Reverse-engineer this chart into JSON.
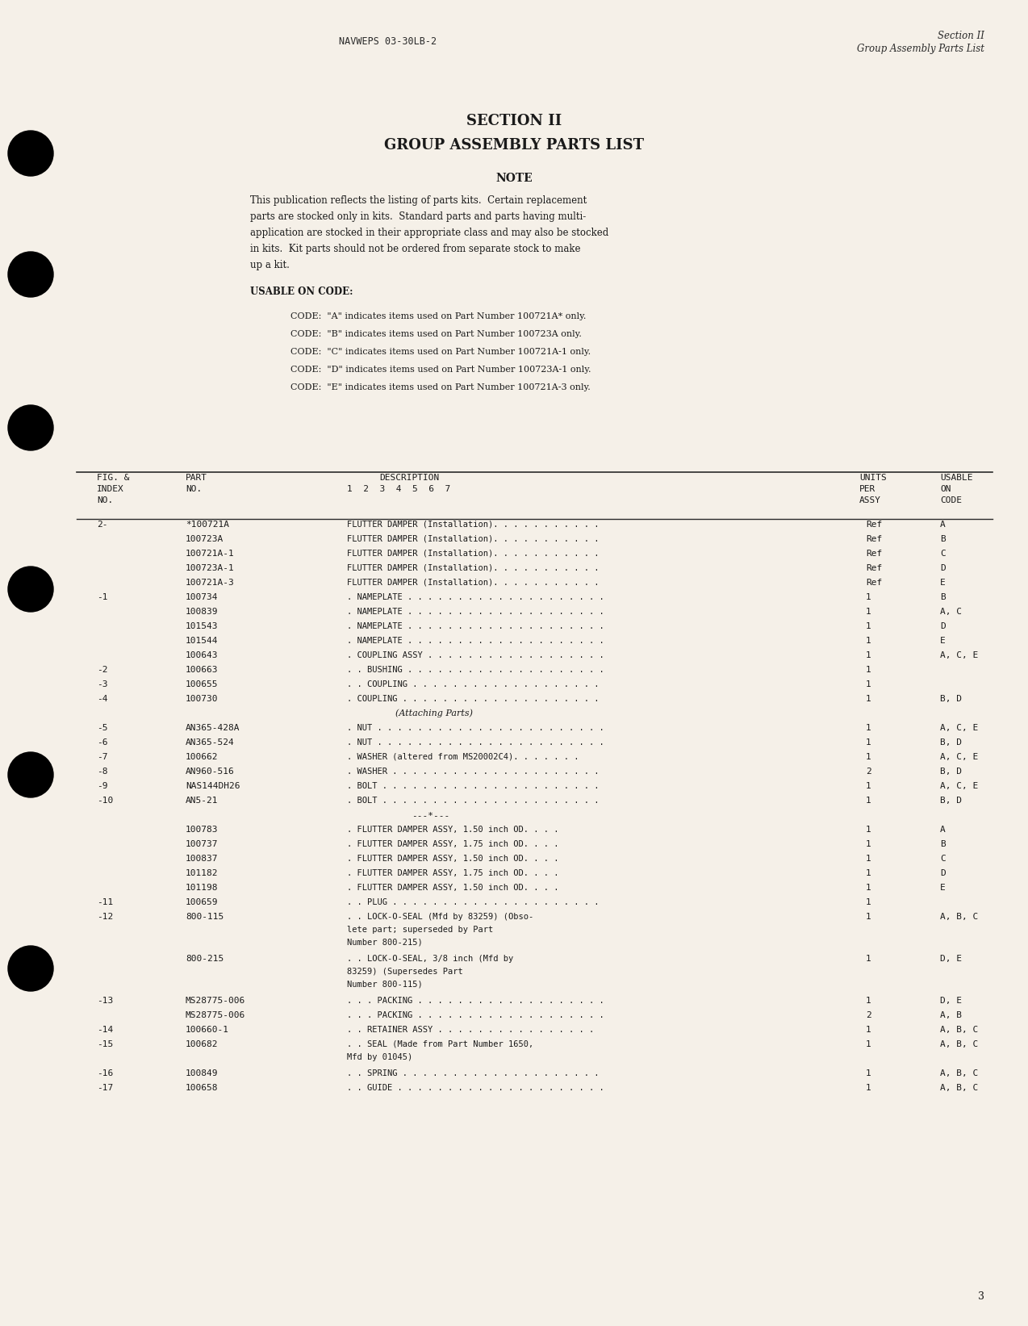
{
  "bg_color": "#f5f0e8",
  "header_left": "NAVWEPS 03-30LB-2",
  "header_right_line1": "Section II",
  "header_right_line2": "Group Assembly Parts List",
  "section_title_line1": "SECTION II",
  "section_title_line2": "GROUP ASSEMBLY PARTS LIST",
  "note_title": "NOTE",
  "note_body": "This publication reflects the listing of parts kits.  Certain replacement\nparts are stocked only in kits.  Standard parts and parts having multi-\napplication are stocked in their appropriate class and may also be stocked\nin kits.  Kit parts should not be ordered from separate stock to make\nup a kit.",
  "usable_on_title": "USABLE ON CODE:",
  "usable_on_codes": [
    "CODE:  \"A\" indicates items used on Part Number 100721A* only.",
    "CODE:  \"B\" indicates items used on Part Number 100723A only.",
    "CODE:  \"C\" indicates items used on Part Number 100721A-1 only.",
    "CODE:  \"D\" indicates items used on Part Number 100723A-1 only.",
    "CODE:  \"E\" indicates items used on Part Number 100721A-3 only."
  ],
  "col_headers": [
    "FIG. &\nINDEX\nNO.",
    "PART\nNO.",
    "DESCRIPTION\n1  2  3  4  5  6  7",
    "UNITS\nPER\nASSY",
    "USABLE\nON\nCODE"
  ],
  "table_rows": [
    [
      "2-",
      "*100721A",
      "FLUTTER DAMPER (Installation). . . . . . . . . . .",
      "Ref",
      "A"
    ],
    [
      "",
      "100723A",
      "FLUTTER DAMPER (Installation). . . . . . . . . . .",
      "Ref",
      "B"
    ],
    [
      "",
      "100721A-1",
      "FLUTTER DAMPER (Installation). . . . . . . . . . .",
      "Ref",
      "C"
    ],
    [
      "",
      "100723A-1",
      "FLUTTER DAMPER (Installation). . . . . . . . . . .",
      "Ref",
      "D"
    ],
    [
      "",
      "100721A-3",
      "FLUTTER DAMPER (Installation). . . . . . . . . . .",
      "Ref",
      "E"
    ],
    [
      "-1",
      "100734",
      ". NAMEPLATE . . . . . . . . . . . . . . . . . . . .",
      "1",
      "B"
    ],
    [
      "",
      "100839",
      ". NAMEPLATE . . . . . . . . . . . . . . . . . . . .",
      "1",
      "A, C"
    ],
    [
      "",
      "101543",
      ". NAMEPLATE . . . . . . . . . . . . . . . . . . . .",
      "1",
      "D"
    ],
    [
      "",
      "101544",
      ". NAMEPLATE . . . . . . . . . . . . . . . . . . . .",
      "1",
      "E"
    ],
    [
      "",
      "100643",
      ". COUPLING ASSY . . . . . . . . . . . . . . . . . .",
      "1",
      "A, C, E"
    ],
    [
      "-2",
      "100663",
      ". . BUSHING . . . . . . . . . . . . . . . . . . . .",
      "1",
      ""
    ],
    [
      "-3",
      "100655",
      ". . COUPLING . . . . . . . . . . . . . . . . . . .",
      "1",
      ""
    ],
    [
      "-4",
      "100730",
      ". COUPLING . . . . . . . . . . . . . . . . . . . .",
      "1",
      "B, D"
    ],
    [
      "",
      "",
      "(Attaching Parts)",
      "",
      ""
    ],
    [
      "-5",
      "AN365-428A",
      ". NUT . . . . . . . . . . . . . . . . . . . . . . .",
      "1",
      "A, C, E"
    ],
    [
      "-6",
      "AN365-524",
      ". NUT . . . . . . . . . . . . . . . . . . . . . . .",
      "1",
      "B, D"
    ],
    [
      "-7",
      "100662",
      ". WASHER (altered from MS20002C4). . . . . . .",
      "1",
      "A, C, E"
    ],
    [
      "-8",
      "AN960-516",
      ". WASHER . . . . . . . . . . . . . . . . . . . . .",
      "2",
      "B, D"
    ],
    [
      "-9",
      "NAS144DH26",
      ". BOLT . . . . . . . . . . . . . . . . . . . . . .",
      "1",
      "A, C, E"
    ],
    [
      "-10",
      "AN5-21",
      ". BOLT . . . . . . . . . . . . . . . . . . . . . .",
      "1",
      "B, D"
    ],
    [
      "",
      "",
      "---*---",
      "",
      ""
    ],
    [
      "",
      "100783",
      ". FLUTTER DAMPER ASSY, 1.50 inch OD. . . .",
      "1",
      "A"
    ],
    [
      "",
      "100737",
      ". FLUTTER DAMPER ASSY, 1.75 inch OD. . . .",
      "1",
      "B"
    ],
    [
      "",
      "100837",
      ". FLUTTER DAMPER ASSY, 1.50 inch OD. . . .",
      "1",
      "C"
    ],
    [
      "",
      "101182",
      ". FLUTTER DAMPER ASSY, 1.75 inch OD. . . .",
      "1",
      "D"
    ],
    [
      "",
      "101198",
      ". FLUTTER DAMPER ASSY, 1.50 inch OD. . . .",
      "1",
      "E"
    ],
    [
      "-11",
      "100659",
      ". . PLUG . . . . . . . . . . . . . . . . . . . . .",
      "1",
      ""
    ],
    [
      "-12",
      "800-115",
      ". . LOCK-O-SEAL (Mfd by 83259) (Obso-\nlete part; superseded by Part\nNumber 800-215)",
      "1",
      "A, B, C"
    ],
    [
      "",
      "800-215",
      ". . LOCK-O-SEAL, 3/8 inch (Mfd by\n83259) (Supersedes Part\nNumber 800-115)",
      "1",
      "D, E"
    ],
    [
      "-13",
      "MS28775-006",
      ". . . PACKING . . . . . . . . . . . . . . . . . . .",
      "1",
      "D, E"
    ],
    [
      "",
      "MS28775-006",
      ". . . PACKING . . . . . . . . . . . . . . . . . . .",
      "2",
      "A, B"
    ],
    [
      "-14",
      "100660-1",
      ". . RETAINER ASSY . . . . . . . . . . . . . . . .",
      "1",
      "A, B, C"
    ],
    [
      "-15",
      "100682",
      ". . SEAL (Made from Part Number 1650,\nMfd by 01045)",
      "1",
      "A, B, C"
    ],
    [
      "-16",
      "100849",
      ". . SPRING . . . . . . . . . . . . . . . . . . . .",
      "1",
      "A, B, C"
    ],
    [
      "-17",
      "100658",
      ". . GUIDE . . . . . . . . . . . . . . . . . . . . .",
      "1",
      "A, B, C"
    ]
  ],
  "page_number": "3",
  "bullet_positions": [
    190,
    340,
    530,
    730,
    960,
    1200
  ]
}
